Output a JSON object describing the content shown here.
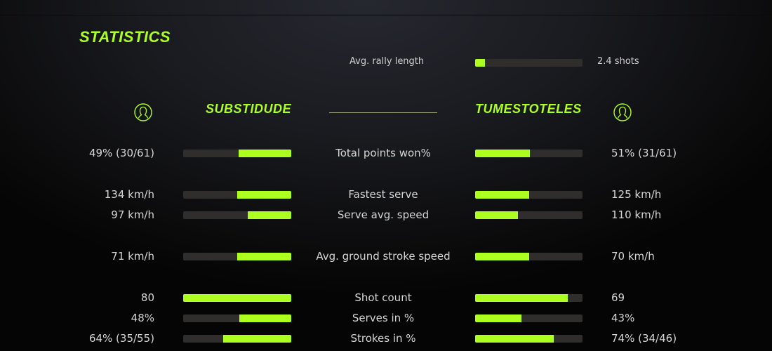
{
  "title": "STATISTICS",
  "accent_color": "#adff1f",
  "rally": {
    "label": "Avg. rally length",
    "value": "2.4 shots",
    "fraction": 0.09
  },
  "players": {
    "left": {
      "name": "SUBSTIDUDE",
      "icon": "user-circle-icon"
    },
    "right": {
      "name": "TUMESTOTELES",
      "icon": "user-circle-icon"
    }
  },
  "stats": [
    {
      "label": "Total points won%",
      "left": "49% (30/61)",
      "right": "51% (31/61)",
      "left_fraction": 0.49,
      "right_fraction": 0.51
    },
    {
      "label": "Fastest serve",
      "left": "134 km/h",
      "right": "125 km/h",
      "left_fraction": 0.5,
      "right_fraction": 0.5
    },
    {
      "label": "Serve avg. speed",
      "left": "97 km/h",
      "right": "110 km/h",
      "left_fraction": 0.4,
      "right_fraction": 0.4
    },
    {
      "label": "Avg. ground stroke speed",
      "left": "71 km/h",
      "right": "70 km/h",
      "left_fraction": 0.5,
      "right_fraction": 0.5
    },
    {
      "label": "Shot count",
      "left": "80",
      "right": "69",
      "left_fraction": 1.0,
      "right_fraction": 0.86
    },
    {
      "label": "Serves in %",
      "left": "48%",
      "right": "43%",
      "left_fraction": 0.48,
      "right_fraction": 0.43
    },
    {
      "label": "Strokes in %",
      "left": "64% (35/55)",
      "right": "74% (34/46)",
      "left_fraction": 0.63,
      "right_fraction": 0.73
    }
  ]
}
